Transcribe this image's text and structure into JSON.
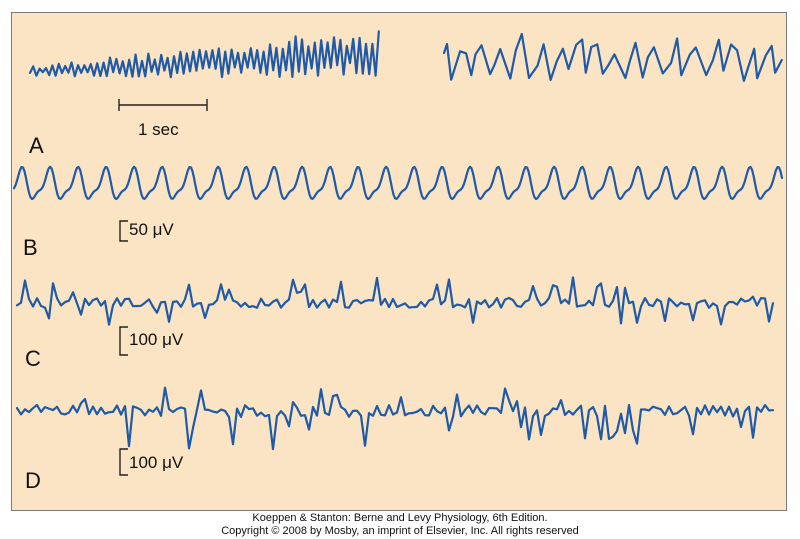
{
  "figure": {
    "panels": [
      {
        "label": "A",
        "scale": "1 sec"
      },
      {
        "label": "B",
        "scale": "50 μV"
      },
      {
        "label": "C",
        "scale": "100 μV"
      },
      {
        "label": "D",
        "scale": "100 μV"
      }
    ],
    "trace_color": "#1f5aa6",
    "background_color": "#fbe4c4"
  },
  "credit": {
    "line1": "Koeppen & Stanton: Berne and Levy Physiology, 6th Edition.",
    "line2": "Copyright © 2008 by Mosby, an imprint of Elsevier, Inc. All rights reserved"
  }
}
